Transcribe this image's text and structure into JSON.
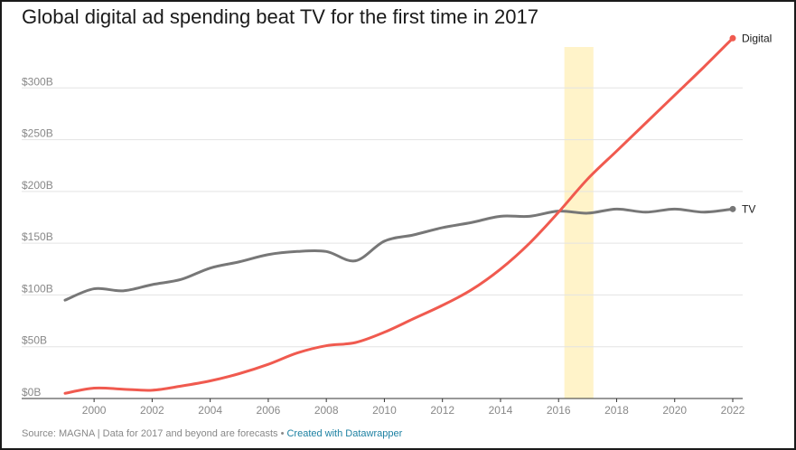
{
  "chart_data": {
    "type": "line",
    "title": "Global digital ad spending beat TV for the first time in 2017",
    "xlabel": "",
    "ylabel": "",
    "xlim": [
      1999,
      2022
    ],
    "ylim": [
      0,
      350
    ],
    "xticks": [
      2000,
      2002,
      2004,
      2006,
      2008,
      2010,
      2012,
      2014,
      2016,
      2018,
      2020,
      2022
    ],
    "yticks": [
      0,
      50,
      100,
      150,
      200,
      250,
      300
    ],
    "ytick_labels": [
      "$0B",
      "$50B",
      "$100B",
      "$150B",
      "$200B",
      "$250B",
      "$300B"
    ],
    "highlight_range": [
      2016.2,
      2017.2
    ],
    "highlight_color": "#fff3c9",
    "grid": true,
    "series": [
      {
        "name": "Digital",
        "color": "#f05a4f",
        "x": [
          1999,
          2000,
          2001,
          2002,
          2003,
          2004,
          2005,
          2006,
          2007,
          2008,
          2009,
          2010,
          2011,
          2012,
          2013,
          2014,
          2015,
          2016,
          2017,
          2018,
          2019,
          2020,
          2021,
          2022
        ],
        "values": [
          5,
          10,
          9,
          8,
          12,
          17,
          24,
          33,
          44,
          51,
          54,
          64,
          77,
          90,
          105,
          125,
          150,
          180,
          212,
          239,
          266,
          293,
          320,
          348
        ]
      },
      {
        "name": "TV",
        "color": "#777777",
        "x": [
          1999,
          2000,
          2001,
          2002,
          2003,
          2004,
          2005,
          2006,
          2007,
          2008,
          2009,
          2010,
          2011,
          2012,
          2013,
          2014,
          2015,
          2016,
          2017,
          2018,
          2019,
          2020,
          2021,
          2022
        ],
        "values": [
          95,
          106,
          104,
          110,
          115,
          126,
          132,
          139,
          142,
          142,
          133,
          152,
          158,
          165,
          170,
          176,
          176,
          181,
          179,
          183,
          180,
          183,
          180,
          183
        ]
      }
    ]
  },
  "footer": {
    "source": "Source: MAGNA | Data for 2017 and beyond are forecasts",
    "separator": " • ",
    "credit": "Created with Datawrapper"
  }
}
